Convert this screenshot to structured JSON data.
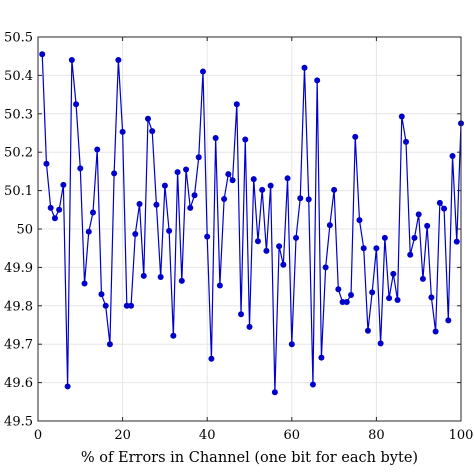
{
  "chart_data": {
    "type": "line",
    "title": "",
    "xlabel": "% of Errors in Channel (one bit for each byte)",
    "ylabel": "",
    "xlim": [
      0,
      100
    ],
    "ylim": [
      49.5,
      50.5
    ],
    "xticks": [
      0,
      20,
      40,
      60,
      80,
      100
    ],
    "yticks": [
      49.5,
      49.6,
      49.7,
      49.8,
      49.9,
      50,
      50.1,
      50.2,
      50.3,
      50.4,
      50.5
    ],
    "grid": true,
    "line_color": "#0000cc",
    "marker_color": "#0000cc",
    "x": [
      1,
      2,
      3,
      4,
      5,
      6,
      7,
      8,
      9,
      10,
      11,
      12,
      13,
      14,
      15,
      16,
      17,
      18,
      19,
      20,
      21,
      22,
      23,
      24,
      25,
      26,
      27,
      28,
      29,
      30,
      31,
      32,
      33,
      34,
      35,
      36,
      37,
      38,
      39,
      40,
      41,
      42,
      43,
      44,
      45,
      46,
      47,
      48,
      49,
      50,
      51,
      52,
      53,
      54,
      55,
      56,
      57,
      58,
      59,
      60,
      61,
      62,
      63,
      64,
      65,
      66,
      67,
      68,
      69,
      70,
      71,
      72,
      73,
      74,
      75,
      76,
      77,
      78,
      79,
      80,
      81,
      82,
      83,
      84,
      85,
      86,
      87,
      88,
      89,
      90,
      91,
      92,
      93,
      94,
      95,
      96,
      97,
      98,
      99,
      100
    ],
    "y": [
      50.455,
      50.17,
      50.055,
      50.028,
      50.05,
      50.115,
      49.59,
      50.44,
      50.325,
      50.158,
      49.858,
      49.993,
      50.043,
      50.207,
      49.83,
      49.8,
      49.7,
      50.145,
      50.44,
      50.253,
      49.8,
      49.8,
      49.987,
      50.065,
      49.878,
      50.287,
      50.255,
      50.063,
      49.875,
      50.113,
      49.995,
      49.722,
      50.148,
      49.865,
      50.155,
      50.055,
      50.088,
      50.187,
      50.41,
      49.98,
      49.662,
      50.237,
      49.853,
      50.078,
      50.143,
      50.127,
      50.325,
      49.778,
      50.233,
      49.745,
      50.13,
      49.968,
      50.102,
      49.943,
      50.113,
      49.575,
      49.955,
      49.907,
      50.132,
      49.7,
      49.977,
      50.08,
      50.42,
      50.077,
      49.595,
      50.387,
      49.665,
      49.9,
      50.01,
      50.102,
      49.843,
      49.81,
      49.81,
      49.828,
      50.24,
      50.023,
      49.95,
      49.735,
      49.835,
      49.95,
      49.702,
      49.977,
      49.82,
      49.883,
      49.815,
      50.293,
      50.227,
      49.933,
      49.977,
      50.038,
      49.87,
      50.008,
      49.822,
      49.733,
      50.068,
      50.053,
      49.762,
      50.19,
      49.967,
      50.275
    ]
  }
}
